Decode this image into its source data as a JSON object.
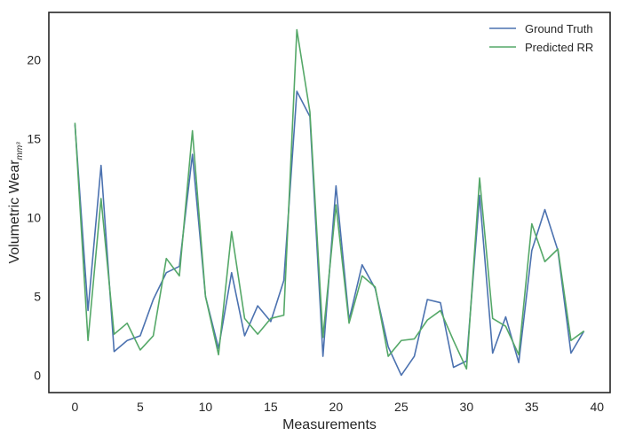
{
  "chart_data": {
    "type": "line",
    "title": "",
    "xlabel": "Measurements",
    "ylabel": "Volumetric Wear",
    "ylabel_unit": "mm³",
    "xlim": [
      -2.0,
      41.0
    ],
    "ylim": [
      -1.1,
      23.0
    ],
    "xticks": [
      0,
      5,
      10,
      15,
      20,
      25,
      30,
      35,
      40
    ],
    "yticks": [
      0,
      5,
      10,
      15,
      20
    ],
    "grid": false,
    "legend_position": "top-right",
    "x": [
      0,
      1,
      2,
      3,
      4,
      5,
      6,
      7,
      8,
      9,
      10,
      11,
      12,
      13,
      14,
      15,
      16,
      17,
      18,
      19,
      20,
      21,
      22,
      23,
      24,
      25,
      26,
      27,
      28,
      29,
      30,
      31,
      32,
      33,
      34,
      35,
      36,
      37,
      38,
      39
    ],
    "series": [
      {
        "name": "Ground Truth",
        "color": "#4c72b0",
        "values": [
          15.9,
          4.1,
          13.3,
          1.5,
          2.2,
          2.5,
          4.8,
          6.5,
          6.9,
          14.0,
          5.0,
          1.7,
          6.5,
          2.5,
          4.4,
          3.4,
          6.0,
          18.0,
          16.4,
          1.2,
          12.0,
          3.5,
          7.0,
          5.5,
          1.8,
          0.0,
          1.2,
          4.8,
          4.6,
          0.5,
          0.9,
          11.4,
          1.4,
          3.7,
          0.8,
          7.9,
          10.5,
          7.9,
          1.4,
          2.8
        ]
      },
      {
        "name": "Predicted RR",
        "color": "#55a868",
        "values": [
          16.0,
          2.2,
          11.2,
          2.6,
          3.3,
          1.6,
          2.5,
          7.4,
          6.3,
          15.5,
          5.0,
          1.3,
          9.1,
          3.6,
          2.6,
          3.6,
          3.8,
          21.9,
          16.7,
          2.4,
          10.8,
          3.3,
          6.3,
          5.6,
          1.2,
          2.2,
          2.3,
          3.5,
          4.1,
          2.2,
          0.4,
          12.5,
          3.6,
          3.1,
          1.3,
          9.6,
          7.2,
          8.0,
          2.2,
          2.8
        ]
      }
    ]
  }
}
